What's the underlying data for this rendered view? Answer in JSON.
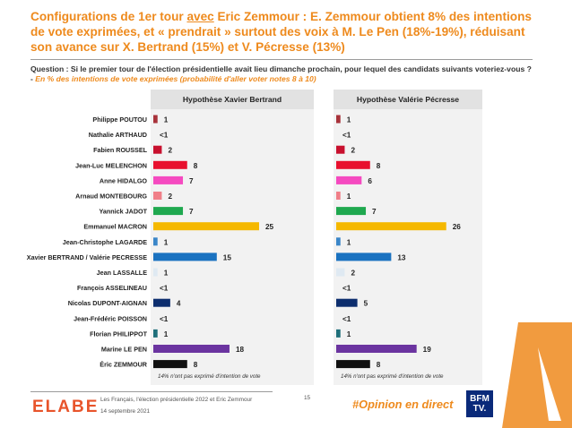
{
  "title_parts": {
    "pre": "Configurations de 1er tour ",
    "avec": "avec",
    "post": " Eric Zemmour : E. Zemmour obtient 8% des intentions de vote exprimées, et « prendrait » surtout des voix à M. Le Pen (18%-19%), réduisant son avance sur X. Bertrand (15%) et V. Pécresse (13%)"
  },
  "question": {
    "text": "Question : Si le premier tour de l'élection présidentielle avait lieu dimanche prochain, pour lequel des candidats suivants voteriez-vous ? - ",
    "sub": "En % des intentions de vote exprimées (probabilité d'aller voter notes 8 à 10)"
  },
  "chart_data": [
    {
      "type": "bar",
      "title": "Hypothèse Xavier Bertrand",
      "categories": [
        "Philippe POUTOU",
        "Nathalie ARTHAUD",
        "Fabien ROUSSEL",
        "Jean-Luc MELENCHON",
        "Anne HIDALGO",
        "Arnaud MONTEBOURG",
        "Yannick JADOT",
        "Emmanuel MACRON",
        "Jean-Christophe LAGARDE",
        "Xavier BERTRAND / Valérie PECRESSE",
        "Jean LASSALLE",
        "François ASSELINEAU",
        "Nicolas DUPONT-AIGNAN",
        "Jean-Frédéric POISSON",
        "Florian PHILIPPOT",
        "Marine LE PEN",
        "Éric ZEMMOUR"
      ],
      "values": [
        1,
        0.3,
        2,
        8,
        7,
        2,
        7,
        25,
        1,
        15,
        1,
        0.3,
        4,
        0.3,
        1,
        18,
        8
      ],
      "labels": [
        "1",
        "<1",
        "2",
        "8",
        "7",
        "2",
        "7",
        "25",
        "1",
        "15",
        "1",
        "<1",
        "4",
        "<1",
        "1",
        "18",
        "8"
      ],
      "colors": [
        "#a8323a",
        "#a8323a",
        "#c8102e",
        "#e8102e",
        "#f54ac0",
        "#f07f88",
        "#1fa84f",
        "#f5b800",
        "#3a86c8",
        "#1a72c0",
        "#dfe9f2",
        "#2a3e7a",
        "#0d2e6e",
        "#2a2a2a",
        "#1f6f7a",
        "#6b34a0",
        "#111111"
      ],
      "footnote": "14% n'ont pas exprimé d'intention de vote"
    },
    {
      "type": "bar",
      "title": "Hypothèse Valérie Pécresse",
      "values": [
        1,
        0.3,
        2,
        8,
        6,
        1,
        7,
        26,
        1,
        13,
        2,
        0.3,
        5,
        0.3,
        1,
        19,
        8
      ],
      "labels": [
        "1",
        "<1",
        "2",
        "8",
        "6",
        "1",
        "7",
        "26",
        "1",
        "13",
        "2",
        "<1",
        "5",
        "<1",
        "1",
        "19",
        "8"
      ],
      "footnote": "14% n'ont pas exprimé d'intention de vote"
    }
  ],
  "footer": {
    "brand": "ELABE",
    "line1": "Les Français, l'élection présidentielle 2022 et Eric Zemmour",
    "line2": "14 septembre 2021",
    "page": "15",
    "hashtag": "#Opinion en direct",
    "bfm_line1": "BFM",
    "bfm_line2": "TV."
  },
  "colors": {
    "accent": "#ee8a1d",
    "panel_bg": "#f2f2f2"
  }
}
